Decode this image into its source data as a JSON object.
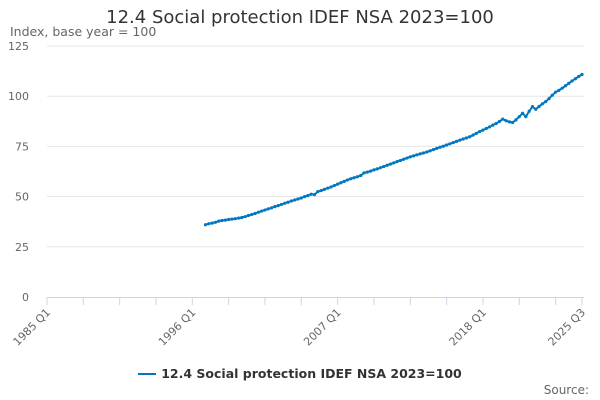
{
  "chart_data": {
    "type": "line",
    "title": "12.4 Social protection IDEF NSA 2023=100",
    "ylabel": "Index, base year = 100",
    "xlabel": "",
    "ylim": [
      0,
      125
    ],
    "yticks": [
      0,
      25,
      50,
      75,
      100,
      125
    ],
    "x_range": [
      "1985 Q1",
      "2025 Q3"
    ],
    "xtick_labels": [
      "1985 Q1",
      "1996 Q1",
      "2007 Q1",
      "2018 Q1",
      "2025 Q3"
    ],
    "grid": "horizontal",
    "legend": "bottom",
    "color": "#0077c0",
    "series": [
      {
        "name": "12.4 Social protection IDEF NSA 2023=100",
        "start": "1997 Q1",
        "end": "2025 Q3",
        "frequency": "quarterly",
        "values": [
          36.0,
          36.5,
          36.8,
          37.2,
          37.8,
          38.1,
          38.3,
          38.6,
          38.8,
          39.0,
          39.3,
          39.6,
          40.0,
          40.6,
          41.1,
          41.6,
          42.2,
          42.8,
          43.3,
          43.9,
          44.4,
          45.0,
          45.5,
          46.1,
          46.7,
          47.2,
          47.8,
          48.3,
          48.8,
          49.3,
          50.0,
          50.5,
          51.2,
          51.0,
          52.5,
          53.0,
          53.6,
          54.2,
          54.8,
          55.5,
          56.2,
          56.9,
          57.6,
          58.3,
          58.9,
          59.4,
          59.9,
          60.5,
          61.8,
          62.2,
          62.7,
          63.3,
          63.8,
          64.4,
          65.0,
          65.6,
          66.2,
          66.8,
          67.4,
          68.0,
          68.6,
          69.2,
          69.8,
          70.3,
          70.8,
          71.3,
          71.7,
          72.2,
          72.8,
          73.4,
          74.0,
          74.6,
          75.1,
          75.7,
          76.3,
          76.9,
          77.5,
          78.1,
          78.7,
          79.2,
          79.8,
          80.6,
          81.5,
          82.4,
          83.1,
          83.9,
          84.7,
          85.6,
          86.4,
          87.4,
          88.6,
          87.8,
          87.2,
          86.9,
          88.2,
          89.8,
          91.5,
          89.8,
          92.5,
          94.8,
          93.5,
          94.9,
          96.2,
          97.3,
          98.8,
          100.5,
          102.0,
          102.9,
          104.0,
          105.2,
          106.4,
          107.6,
          108.7,
          109.8,
          110.8
        ]
      }
    ]
  },
  "source_label": "Source:"
}
